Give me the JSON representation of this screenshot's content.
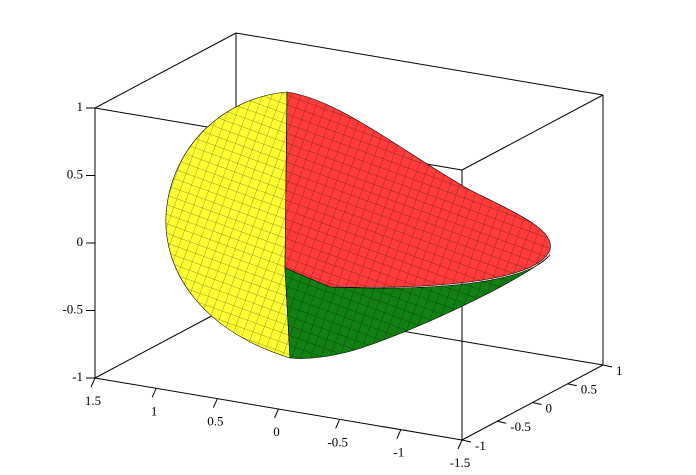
{
  "chart_data": {
    "type": "surface3d",
    "xlim": [
      -1.5,
      1.5
    ],
    "xticks": [
      1.5,
      1,
      0.5,
      0,
      -0.5,
      -1,
      -1.5
    ],
    "ylim": [
      -1,
      1
    ],
    "yticks": [
      -1,
      -0.5,
      0,
      0.5,
      1
    ],
    "zlim": [
      -1,
      1
    ],
    "zticks": [
      -1,
      -0.5,
      0,
      0.5,
      1
    ]
  }
}
